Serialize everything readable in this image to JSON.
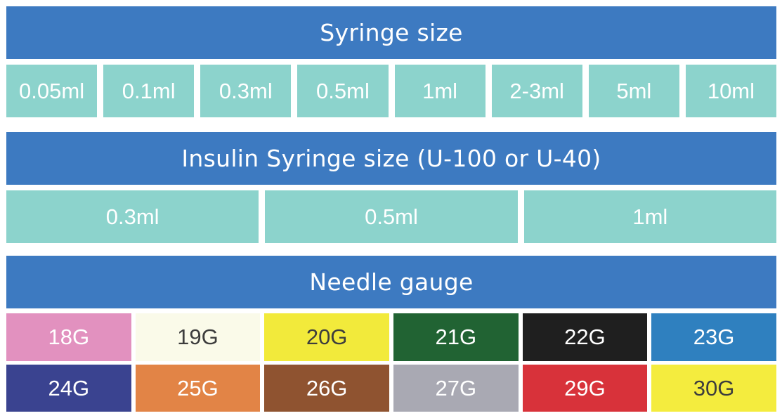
{
  "syringe": {
    "title": "Syringe size",
    "sizes": [
      "0.05ml",
      "0.1ml",
      "0.3ml",
      "0.5ml",
      "1ml",
      "2-3ml",
      "5ml",
      "10ml"
    ]
  },
  "insulin": {
    "title": "Insulin Syringe size (U-100 or U-40)",
    "sizes": [
      "0.3ml",
      "0.5ml",
      "1ml"
    ]
  },
  "needle": {
    "title": "Needle gauge",
    "row1": [
      {
        "label": "18G",
        "bg": "#e291bf",
        "fg": "#ffffff"
      },
      {
        "label": "19G",
        "bg": "#fafae9",
        "fg": "#3d3d3d"
      },
      {
        "label": "20G",
        "bg": "#f2ea3b",
        "fg": "#3d3d3d"
      },
      {
        "label": "21G",
        "bg": "#216333",
        "fg": "#ffffff"
      },
      {
        "label": "22G",
        "bg": "#1f1f1f",
        "fg": "#ffffff"
      },
      {
        "label": "23G",
        "bg": "#2f80bf",
        "fg": "#ffffff"
      }
    ],
    "row2": [
      {
        "label": "24G",
        "bg": "#3a4390",
        "fg": "#ffffff"
      },
      {
        "label": "25G",
        "bg": "#e28446",
        "fg": "#ffffff"
      },
      {
        "label": "26G",
        "bg": "#8f5330",
        "fg": "#ffffff"
      },
      {
        "label": "27G",
        "bg": "#a9a9b3",
        "fg": "#ffffff"
      },
      {
        "label": "29G",
        "bg": "#d8323a",
        "fg": "#ffffff"
      },
      {
        "label": "30G",
        "bg": "#f4ec3e",
        "fg": "#3d3d3d"
      }
    ]
  }
}
